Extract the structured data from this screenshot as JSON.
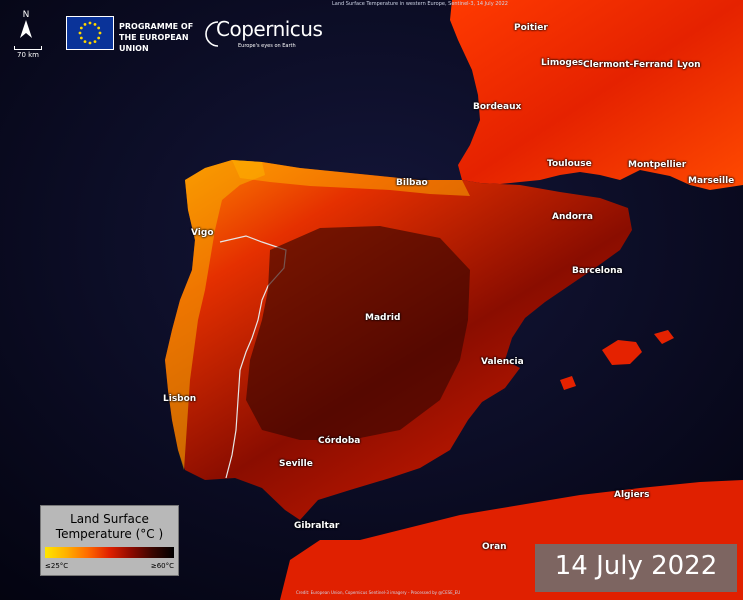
{
  "header": {
    "top_title": "Land Surface Temperature in western Europe, Sentinel-3, 14 July 2022",
    "programme": "PROGRAMME OF THE EUROPEAN UNION",
    "brand": "Copernicus",
    "tagline": "Europe's eyes on Earth"
  },
  "map": {
    "north_label": "N",
    "scale_label": "70 km",
    "cities": [
      "Poitier",
      "Limoges",
      "Clermont-Ferrand",
      "Lyon",
      "Bordeaux",
      "Toulouse",
      "Montpellier",
      "Marseille",
      "Bilbao",
      "Andorra",
      "Vigo",
      "Barcelona",
      "Madrid",
      "Valencia",
      "Lisbon",
      "Córdoba",
      "Seville",
      "Gibraltar",
      "Oran",
      "Algiers"
    ]
  },
  "legend": {
    "title": "Land Surface Temperature (°C )",
    "min_label": "≤25°C",
    "max_label": "≥60°C",
    "colors": [
      "#ffe600",
      "#ffb000",
      "#ff6a00",
      "#e02000",
      "#8e0a00",
      "#3a0600",
      "#000000"
    ]
  },
  "date_label": "14 July 2022",
  "credits": "Credit: European Union, Copernicus Sentinel-3 imagery - Processed by @CESE_EU",
  "colors": {
    "sea": "#05051a",
    "hot": "#3a0600",
    "warm": "#e02000",
    "cool": "#ffd000"
  }
}
